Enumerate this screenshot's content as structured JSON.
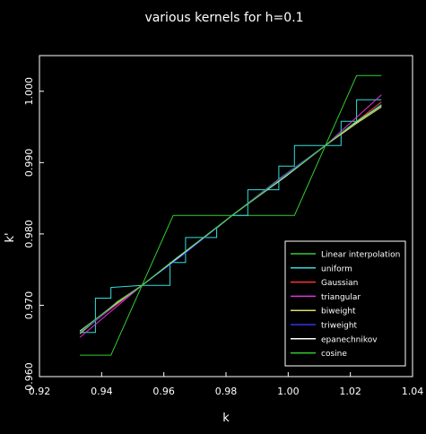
{
  "chart_data": {
    "type": "line",
    "title": "various kernels for h=0.1",
    "xlabel": "k",
    "ylabel": "k'",
    "xlim": [
      0.92,
      1.04
    ],
    "ylim": [
      0.96,
      1.005
    ],
    "x_ticks": [
      0.92,
      0.94,
      0.96,
      0.98,
      1.0,
      1.02,
      1.04
    ],
    "x_tick_labels": [
      "0.92",
      "0.94",
      "0.96",
      "0.98",
      "1.00",
      "1.02",
      "1.04"
    ],
    "y_ticks": [
      0.96,
      0.97,
      0.98,
      0.99,
      1.0
    ],
    "y_tick_labels": [
      "0.960",
      "0.970",
      "0.980",
      "0.990",
      "1.000"
    ],
    "grid": false,
    "legend_position": "bottom-right",
    "background": "#000000",
    "axis_color": "#ffffff",
    "series": [
      {
        "name": "Linear interpolation",
        "color": "#33cc33",
        "points": [
          [
            0.933,
            0.963
          ],
          [
            0.943,
            0.963
          ],
          [
            0.953,
            0.9728
          ],
          [
            0.963,
            0.9826
          ],
          [
            0.982,
            0.9826
          ],
          [
            1.002,
            0.9826
          ],
          [
            1.012,
            0.9924
          ],
          [
            1.022,
            1.0022
          ],
          [
            1.03,
            1.0022
          ]
        ]
      },
      {
        "name": "uniform",
        "color": "#33dddd",
        "points": [
          [
            0.933,
            0.9662
          ],
          [
            0.938,
            0.9662
          ],
          [
            0.938,
            0.971
          ],
          [
            0.943,
            0.971
          ],
          [
            0.943,
            0.9725
          ],
          [
            0.953,
            0.9728
          ],
          [
            0.962,
            0.9728
          ],
          [
            0.962,
            0.976
          ],
          [
            0.967,
            0.976
          ],
          [
            0.967,
            0.9795
          ],
          [
            0.977,
            0.9795
          ],
          [
            0.977,
            0.9808
          ],
          [
            0.982,
            0.9826
          ],
          [
            0.987,
            0.9826
          ],
          [
            0.987,
            0.9862
          ],
          [
            0.997,
            0.9862
          ],
          [
            0.997,
            0.9895
          ],
          [
            1.002,
            0.9895
          ],
          [
            1.002,
            0.9924
          ],
          [
            1.012,
            0.9924
          ],
          [
            1.017,
            0.9924
          ],
          [
            1.017,
            0.9958
          ],
          [
            1.022,
            0.9958
          ],
          [
            1.022,
            0.9988
          ],
          [
            1.03,
            0.9988
          ]
        ]
      },
      {
        "name": "Gaussian",
        "color": "#ff3333",
        "points": [
          [
            0.933,
            0.9662
          ],
          [
            0.953,
            0.9728
          ],
          [
            0.982,
            0.9826
          ],
          [
            1.012,
            0.9924
          ],
          [
            1.03,
            0.9985
          ]
        ]
      },
      {
        "name": "triangular",
        "color": "#dd33dd",
        "points": [
          [
            0.933,
            0.9655
          ],
          [
            0.953,
            0.9728
          ],
          [
            0.982,
            0.9826
          ],
          [
            1.012,
            0.9924
          ],
          [
            1.03,
            0.9995
          ]
        ]
      },
      {
        "name": "biweight",
        "color": "#dddd66",
        "points": [
          [
            0.933,
            0.966
          ],
          [
            0.945,
            0.9705
          ],
          [
            0.953,
            0.9728
          ],
          [
            0.965,
            0.9768
          ],
          [
            0.982,
            0.9826
          ],
          [
            0.998,
            0.988
          ],
          [
            1.012,
            0.9924
          ],
          [
            1.022,
            0.9955
          ],
          [
            1.03,
            0.9978
          ]
        ]
      },
      {
        "name": "triweight",
        "color": "#3333ee",
        "points": [
          [
            0.933,
            0.9662
          ],
          [
            0.945,
            0.9703
          ],
          [
            0.953,
            0.9728
          ],
          [
            0.966,
            0.977
          ],
          [
            0.982,
            0.9826
          ],
          [
            0.999,
            0.9883
          ],
          [
            1.012,
            0.9924
          ],
          [
            1.022,
            0.9957
          ],
          [
            1.03,
            0.9982
          ]
        ]
      },
      {
        "name": "epanechnikov",
        "color": "#ffffff",
        "points": [
          [
            0.933,
            0.9664
          ],
          [
            0.944,
            0.97
          ],
          [
            0.953,
            0.9728
          ],
          [
            0.964,
            0.9765
          ],
          [
            0.982,
            0.9826
          ],
          [
            0.999,
            0.988
          ],
          [
            1.012,
            0.9924
          ],
          [
            1.021,
            0.9954
          ],
          [
            1.03,
            0.998
          ]
        ]
      },
      {
        "name": "cosine",
        "color": "#33cc33",
        "points": [
          [
            0.933,
            0.9663
          ],
          [
            0.944,
            0.9701
          ],
          [
            0.953,
            0.9728
          ],
          [
            0.964,
            0.9766
          ],
          [
            0.982,
            0.9826
          ],
          [
            0.999,
            0.9881
          ],
          [
            1.012,
            0.9924
          ],
          [
            1.021,
            0.9955
          ],
          [
            1.03,
            0.9981
          ]
        ]
      }
    ]
  }
}
